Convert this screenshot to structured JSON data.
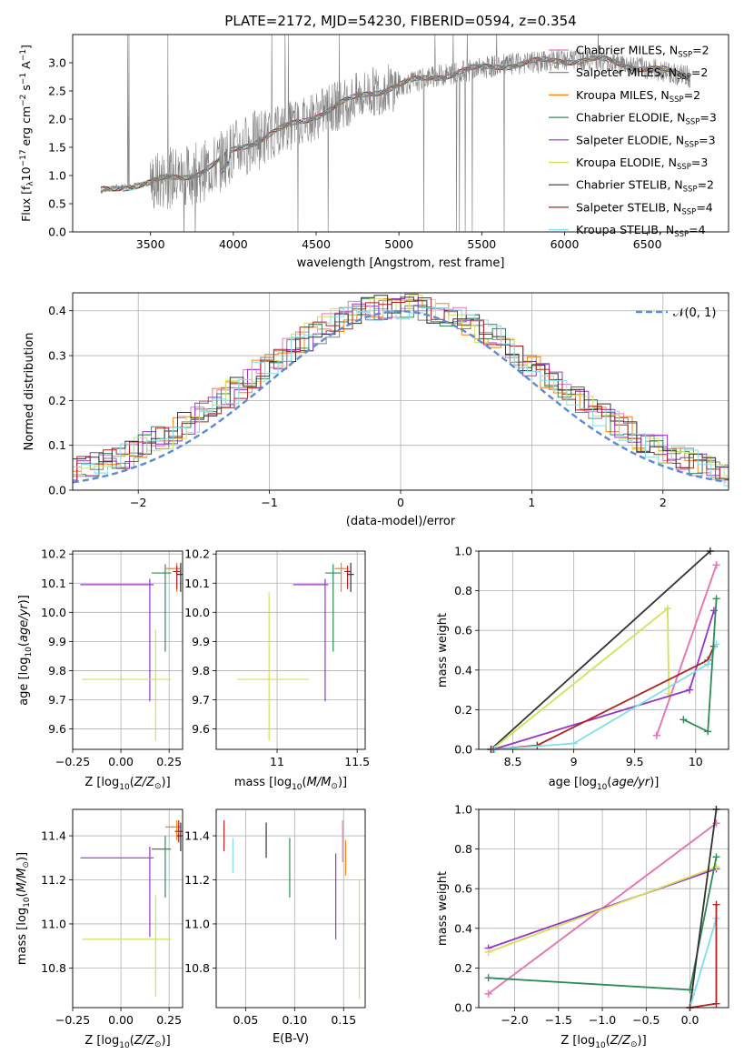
{
  "chart_data": [
    {
      "id": "spectrum",
      "type": "line",
      "title": "PLATE=2172, MJD=54230, FIBERID=0594, z=0.354",
      "xlabel": "wavelength [Angstrom, rest frame]",
      "ylabel": "Flux [f_λ 10^-17 erg cm^-2 s^-1 A^-1]",
      "xlim": [
        3030,
        6990
      ],
      "ylim": [
        0,
        3.5
      ],
      "xticks": [
        3500,
        4000,
        4500,
        5000,
        5500,
        6000,
        6500
      ],
      "yticks": [
        0.0,
        0.5,
        1.0,
        1.5,
        2.0,
        2.5,
        3.0
      ],
      "legend_position": "right",
      "legend": [
        {
          "base": "Chabrier MILES, N",
          "sub": "SSP",
          "val": "=2",
          "color": "#e377c2"
        },
        {
          "base": "Salpeter MILES, N",
          "sub": "SSP",
          "val": "=2",
          "color": "#7f7f7f"
        },
        {
          "base": "Kroupa MILES, N",
          "sub": "SSP",
          "val": "=2",
          "color": "#ff7f0e"
        },
        {
          "base": "Chabrier ELODIE, N",
          "sub": "SSP",
          "val": "=3",
          "color": "#2e8b57"
        },
        {
          "base": "Salpeter ELODIE, N",
          "sub": "SSP",
          "val": "=3",
          "color": "#9932cc"
        },
        {
          "base": "Kroupa ELODIE, N",
          "sub": "SSP",
          "val": "=3",
          "color": "#d4e157"
        },
        {
          "base": "Chabrier STELIB, N",
          "sub": "SSP",
          "val": "=2",
          "color": "#333333"
        },
        {
          "base": "Salpeter STELIB, N",
          "sub": "SSP",
          "val": "=4",
          "color": "#b22222"
        },
        {
          "base": "Kroupa STELIB, N",
          "sub": "SSP",
          "val": "=4",
          "color": "#80deea"
        }
      ],
      "series": [
        {
          "name": "data",
          "x": [
            3200,
            3300,
            3400,
            3500,
            3600,
            3700,
            3800,
            3900,
            4000,
            4200,
            4400,
            4600,
            4800,
            5000,
            5200,
            5400,
            5600,
            5800,
            6000,
            6200,
            6400,
            6600,
            6750
          ],
          "values": [
            0.72,
            0.8,
            0.83,
            0.85,
            0.95,
            1.0,
            1.05,
            1.2,
            1.45,
            1.7,
            1.95,
            2.2,
            2.45,
            2.6,
            2.75,
            2.85,
            2.95,
            3.0,
            3.05,
            3.05,
            2.95,
            2.85,
            2.75
          ]
        }
      ]
    },
    {
      "id": "residuals",
      "type": "line",
      "xlabel": "(data-model)/error",
      "ylabel": "Normed distribution",
      "xlim": [
        -2.5,
        2.5
      ],
      "ylim": [
        0,
        0.44
      ],
      "xticks": [
        -2,
        -1,
        0,
        1,
        2
      ],
      "yticks": [
        0.0,
        0.1,
        0.2,
        0.3,
        0.4
      ],
      "legend": [
        {
          "name": "𝒩(0, 1)",
          "color": "#5b8bd8"
        }
      ],
      "legend_position": "top-right"
    },
    {
      "id": "age_vs_z",
      "type": "scatter",
      "xlabel": "Z [log10(Z/Z⊙)]",
      "ylabel": "age [log10(age/yr)]",
      "xlim": [
        -0.25,
        0.32
      ],
      "ylim": [
        9.53,
        10.21
      ],
      "xticks": [
        -0.25,
        0.0,
        0.25
      ],
      "xticklabels": [
        "−0.25",
        "0.00",
        "0.25"
      ],
      "yticks": [
        9.6,
        9.7,
        9.8,
        9.9,
        10.0,
        10.1,
        10.2
      ],
      "points": [
        {
          "x": 0.15,
          "y": 10.095,
          "xerr": [
            0.36,
            0.02
          ],
          "yerr": [
            0.4,
            0.02
          ],
          "color": "#9932cc"
        },
        {
          "x": 0.18,
          "y": 9.77,
          "xerr": [
            0.38,
            0.08
          ],
          "yerr": [
            0.21,
            0.17
          ],
          "color": "#d4e157"
        },
        {
          "x": 0.23,
          "y": 10.135,
          "xerr": [
            0.07,
            0.03
          ],
          "yerr": [
            0.27,
            0.03
          ],
          "color": "#2e8b57"
        },
        {
          "x": 0.29,
          "y": 10.15,
          "xerr": [
            0.06,
            0.02
          ],
          "yerr": [
            0.08,
            0.02
          ],
          "color": "#ff7f0e"
        },
        {
          "x": 0.29,
          "y": 10.14,
          "xerr": [
            0.02,
            0.02
          ],
          "yerr": [
            0.06,
            0.02
          ],
          "color": "#b22222"
        },
        {
          "x": 0.31,
          "y": 10.13,
          "xerr": [
            0.02,
            0.01
          ],
          "yerr": [
            0.06,
            0.04
          ],
          "color": "#333333"
        }
      ]
    },
    {
      "id": "age_vs_mass",
      "type": "scatter",
      "xlabel": "mass [log10(M/M⊙)]",
      "ylabel": "",
      "xlim": [
        10.62,
        11.55
      ],
      "ylim": [
        9.53,
        10.21
      ],
      "xticks": [
        11.0,
        11.5
      ],
      "yticks": [
        9.6,
        9.7,
        9.8,
        9.9,
        10.0,
        10.1,
        10.2
      ],
      "points": [
        {
          "x": 11.3,
          "y": 10.095,
          "xerr": [
            0.2,
            0.02
          ],
          "yerr": [
            0.4,
            0.02
          ],
          "color": "#9932cc"
        },
        {
          "x": 10.95,
          "y": 9.77,
          "xerr": [
            0.2,
            0.25
          ],
          "yerr": [
            0.21,
            0.3
          ],
          "color": "#d4e157"
        },
        {
          "x": 11.35,
          "y": 10.135,
          "xerr": [
            0.05,
            0.05
          ],
          "yerr": [
            0.27,
            0.03
          ],
          "color": "#2e8b57"
        },
        {
          "x": 11.4,
          "y": 10.15,
          "xerr": [
            0.04,
            0.04
          ],
          "yerr": [
            0.08,
            0.02
          ],
          "color": "#ff7f0e"
        },
        {
          "x": 11.44,
          "y": 10.14,
          "xerr": [
            0.02,
            0.02
          ],
          "yerr": [
            0.06,
            0.02
          ],
          "color": "#b22222"
        },
        {
          "x": 11.46,
          "y": 10.13,
          "xerr": [
            0.02,
            0.02
          ],
          "yerr": [
            0.06,
            0.04
          ],
          "color": "#333333"
        }
      ]
    },
    {
      "id": "weight_vs_age",
      "type": "line",
      "xlabel": "age [log10(age/yr)]",
      "ylabel": "mass weight",
      "xlim": [
        8.22,
        10.27
      ],
      "ylim": [
        0,
        1.0
      ],
      "xticks": [
        8.5,
        9.0,
        9.5,
        10.0
      ],
      "yticks": [
        0.0,
        0.2,
        0.4,
        0.6,
        0.8,
        1.0
      ],
      "series": [
        {
          "name": "",
          "color": "#333333",
          "x": [
            8.32,
            10.12
          ],
          "values": [
            0.0,
            1.0
          ]
        },
        {
          "name": "",
          "color": "#ff7f0e",
          "x": [
            9.68,
            10.17
          ],
          "values": [
            0.07,
            0.93
          ]
        },
        {
          "name": "",
          "color": "#e377c2",
          "x": [
            9.68,
            10.17
          ],
          "values": [
            0.07,
            0.93
          ]
        },
        {
          "name": "",
          "color": "#d4e157",
          "x": [
            8.33,
            9.77,
            9.78
          ],
          "values": [
            0.0,
            0.71,
            0.28
          ]
        },
        {
          "name": "",
          "color": "#9932cc",
          "x": [
            8.34,
            9.95,
            10.15
          ],
          "values": [
            0.0,
            0.3,
            0.7
          ]
        },
        {
          "name": "",
          "color": "#b22222",
          "x": [
            8.35,
            8.7,
            10.1,
            10.15
          ],
          "values": [
            0.0,
            0.02,
            0.45,
            0.52
          ]
        },
        {
          "name": "",
          "color": "#80deea",
          "x": [
            8.35,
            9.0,
            10.1,
            10.17
          ],
          "values": [
            0.0,
            0.03,
            0.43,
            0.53
          ]
        },
        {
          "name": "",
          "color": "#2e8b57",
          "x": [
            9.9,
            10.1,
            10.17
          ],
          "values": [
            0.15,
            0.09,
            0.76
          ]
        }
      ]
    },
    {
      "id": "mass_vs_z",
      "type": "scatter",
      "xlabel": "Z [log10(Z/Z⊙)]",
      "ylabel": "mass [log10(M/M⊙)]",
      "xlim": [
        -0.25,
        0.32
      ],
      "ylim": [
        10.62,
        11.52
      ],
      "xticks": [
        -0.25,
        0.0,
        0.25
      ],
      "xticklabels": [
        "−0.25",
        "0.00",
        "0.25"
      ],
      "yticks": [
        10.8,
        11.0,
        11.2,
        11.4
      ],
      "points": [
        {
          "x": 0.15,
          "y": 11.3,
          "xerr": [
            0.36,
            0.02
          ],
          "yerr": [
            0.36,
            0.05
          ],
          "color": "#9932cc"
        },
        {
          "x": 0.18,
          "y": 10.93,
          "xerr": [
            0.38,
            0.08
          ],
          "yerr": [
            0.26,
            0.2
          ],
          "color": "#d4e157"
        },
        {
          "x": 0.23,
          "y": 11.34,
          "xerr": [
            0.07,
            0.03
          ],
          "yerr": [
            0.22,
            0.06
          ],
          "color": "#2e8b57"
        },
        {
          "x": 0.29,
          "y": 11.44,
          "xerr": [
            0.06,
            0.02
          ],
          "yerr": [
            0.06,
            0.03
          ],
          "color": "#ff7f0e"
        },
        {
          "x": 0.3,
          "y": 11.42,
          "xerr": [
            0.02,
            0.02
          ],
          "yerr": [
            0.05,
            0.05
          ],
          "color": "#b22222"
        },
        {
          "x": 0.31,
          "y": 11.4,
          "xerr": [
            0.02,
            0.01
          ],
          "yerr": [
            0.07,
            0.06
          ],
          "color": "#333333"
        }
      ]
    },
    {
      "id": "mass_vs_ebv",
      "type": "scatter",
      "xlabel": "E(B-V)",
      "ylabel": "",
      "xlim": [
        0.02,
        0.172
      ],
      "ylim": [
        10.62,
        11.52
      ],
      "xticks": [
        0.05,
        0.1,
        0.15
      ],
      "xticklabels": [
        "0.05",
        "0.10",
        "0.15"
      ],
      "yticks": [
        10.8,
        11.0,
        11.2,
        11.4
      ],
      "points": [
        {
          "x": 0.028,
          "y": 11.4,
          "yerr": [
            0.07,
            0.07
          ],
          "color": "#b22222"
        },
        {
          "x": 0.037,
          "y": 11.31,
          "yerr": [
            0.08,
            0.08
          ],
          "color": "#80deea"
        },
        {
          "x": 0.071,
          "y": 11.38,
          "yerr": [
            0.08,
            0.08
          ],
          "color": "#333333"
        },
        {
          "x": 0.095,
          "y": 11.26,
          "yerr": [
            0.14,
            0.13
          ],
          "color": "#2e8b57"
        },
        {
          "x": 0.142,
          "y": 11.13,
          "yerr": [
            0.2,
            0.19
          ],
          "color": "#9932cc"
        },
        {
          "x": 0.149,
          "y": 11.37,
          "yerr": [
            0.09,
            0.1
          ],
          "color": "#e377c2"
        },
        {
          "x": 0.152,
          "y": 11.3,
          "yerr": [
            0.08,
            0.08
          ],
          "color": "#ff7f0e"
        },
        {
          "x": 0.166,
          "y": 10.93,
          "yerr": [
            0.27,
            0.27
          ],
          "color": "#d4e157"
        }
      ]
    },
    {
      "id": "weight_vs_z",
      "type": "line",
      "xlabel": "Z [log10(Z/Z⊙)]",
      "ylabel": "mass weight",
      "xlim": [
        -2.41,
        0.44
      ],
      "ylim": [
        0,
        1.0
      ],
      "xticks": [
        -2.0,
        -1.5,
        -1.0,
        -0.5,
        0.0,
        0.5
      ],
      "xticklabels": [
        "−2.0",
        "−1.5",
        "−1.0",
        "−0.5",
        "0.0",
        "0.5"
      ],
      "yticks": [
        0.0,
        0.2,
        0.4,
        0.6,
        0.8,
        1.0
      ],
      "series": [
        {
          "name": "",
          "color": "#ff7f0e",
          "x": [
            -2.3,
            0.3
          ],
          "values": [
            0.07,
            0.93
          ]
        },
        {
          "name": "",
          "color": "#e377c2",
          "x": [
            -2.3,
            0.3
          ],
          "values": [
            0.07,
            0.93
          ]
        },
        {
          "name": "",
          "color": "#9932cc",
          "x": [
            -2.3,
            0.3
          ],
          "values": [
            0.3,
            0.7
          ]
        },
        {
          "name": "",
          "color": "#d4e157",
          "x": [
            -2.3,
            0.3
          ],
          "values": [
            0.28,
            0.71
          ]
        },
        {
          "name": "",
          "color": "#2e8b57",
          "x": [
            -2.3,
            0.0,
            0.3
          ],
          "values": [
            0.15,
            0.09,
            0.76
          ]
        },
        {
          "name": "",
          "color": "#333333",
          "x": [
            0.0,
            0.3
          ],
          "values": [
            0.0,
            1.0
          ]
        },
        {
          "name": "",
          "color": "#80deea",
          "x": [
            0.0,
            0.3
          ],
          "values": [
            0.0,
            0.45
          ]
        },
        {
          "name": "",
          "color": "#b22222",
          "x": [
            0.0,
            0.3,
            0.3
          ],
          "values": [
            0.0,
            0.02,
            0.52
          ]
        }
      ]
    }
  ]
}
